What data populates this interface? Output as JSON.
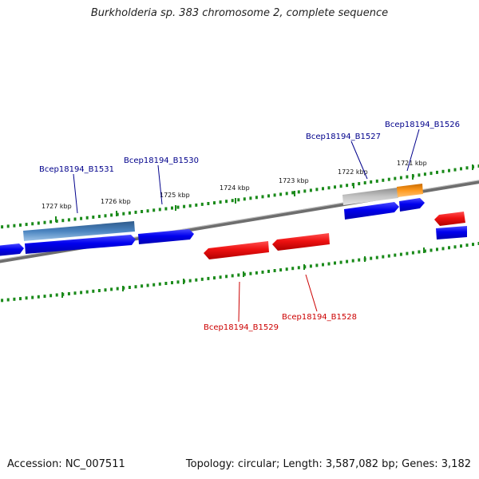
{
  "title": "Burkholderia sp. 383 chromosome 2, complete sequence",
  "footer": {
    "accession": "Accession: NC_007511",
    "summary": "Topology: circular; Length: 3,587,082 bp; Genes: 3,182"
  },
  "map": {
    "colors": {
      "backbone": "#8a8a8a",
      "forward_strand_gene": "#0000ee",
      "reverse_strand_gene": "#ee1111",
      "tick": "#1a8a1a",
      "forward_label": "#00008b",
      "reverse_label": "#cc0000",
      "feature_steelblue": "#3f6fa8",
      "feature_grey": "#b0b0b0",
      "feature_orange": "#f08a10"
    },
    "scale_labels": [
      "1727 kbp",
      "1726 kbp",
      "1725 kbp",
      "1724 kbp",
      "1723 kbp",
      "1722 kbp",
      "1721 kbp"
    ],
    "gene_labels": {
      "b1531": "Bcep18194_B1531",
      "b1530": "Bcep18194_B1530",
      "b1527": "Bcep18194_B1527",
      "b1526": "Bcep18194_B1526",
      "b1529": "Bcep18194_B1529",
      "b1528": "Bcep18194_B1528"
    }
  }
}
